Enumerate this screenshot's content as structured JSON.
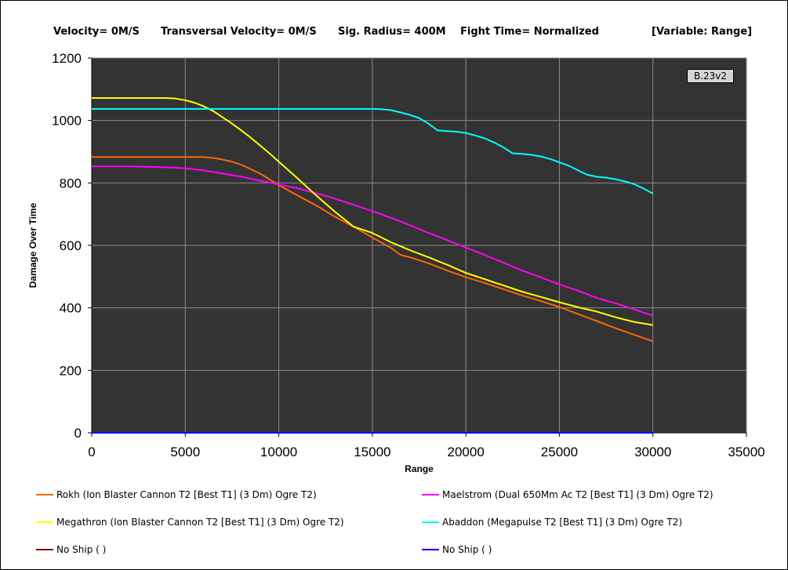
{
  "header": {
    "velocity": "Velocity= 0M/S",
    "transversal": "Transversal Velocity= 0M/S",
    "sig_radius": "Sig. Radius= 400M",
    "fight_time": "Fight Time= Normalized",
    "variable": "[Variable: Range]"
  },
  "version_badge": "B.23v2",
  "chart_data": {
    "type": "line",
    "xlabel": "Range",
    "ylabel": "Damage Over Time",
    "xlim": [
      0,
      35000
    ],
    "ylim": [
      0,
      1200
    ],
    "xticks": [
      0,
      5000,
      10000,
      15000,
      20000,
      25000,
      30000,
      35000
    ],
    "yticks": [
      0,
      200,
      400,
      600,
      800,
      1000,
      1200
    ],
    "grid": true,
    "legend_position": "bottom",
    "background_color": "#333333",
    "series": [
      {
        "name": "Rokh (Ion Blaster Cannon T2 [Best T1] (3 Dm) Ogre T2)",
        "color": "#ff6600",
        "x": [
          0,
          2000,
          4000,
          6000,
          6500,
          7000,
          7500,
          8000,
          9000,
          10000,
          11000,
          12000,
          13000,
          14000,
          15000,
          16000,
          16500,
          17000,
          18000,
          19000,
          20000,
          21000,
          22000,
          23000,
          24000,
          25000,
          26000,
          27000,
          28000,
          29000,
          30000
        ],
        "y": [
          883,
          883,
          883,
          883,
          880,
          875,
          868,
          858,
          830,
          793,
          760,
          728,
          692,
          660,
          625,
          592,
          570,
          562,
          543,
          520,
          498,
          480,
          460,
          440,
          422,
          403,
          380,
          358,
          335,
          314,
          293
        ]
      },
      {
        "name": "Maelstrom (Dual 650Mm Ac T2 [Best T1] (3 Dm) Ogre T2)",
        "color": "#ff00ff",
        "x": [
          0,
          2000,
          4000,
          5000,
          6000,
          7000,
          8000,
          9000,
          10000,
          11000,
          12000,
          13000,
          14000,
          15000,
          16000,
          17000,
          18000,
          19000,
          20000,
          21000,
          22000,
          23000,
          24000,
          25000,
          26000,
          27000,
          28000,
          29000,
          30000
        ],
        "y": [
          853,
          853,
          850,
          847,
          840,
          830,
          820,
          807,
          795,
          783,
          767,
          750,
          730,
          710,
          688,
          665,
          640,
          617,
          593,
          570,
          545,
          520,
          498,
          475,
          455,
          432,
          415,
          395,
          375
        ]
      },
      {
        "name": "Megathron (Ion Blaster Cannon T2 [Best T1] (3 Dm) Ogre T2)",
        "color": "#ffff00",
        "x": [
          0,
          2000,
          4000,
          4500,
          5000,
          5500,
          6000,
          6500,
          7000,
          7500,
          8000,
          8500,
          9000,
          9500,
          10000,
          11000,
          12000,
          13000,
          14000,
          15000,
          16000,
          17000,
          18000,
          19000,
          20000,
          21000,
          22000,
          23000,
          24000,
          25000,
          26000,
          27000,
          28000,
          29000,
          30000
        ],
        "y": [
          1072,
          1072,
          1072,
          1070,
          1065,
          1057,
          1045,
          1030,
          1010,
          990,
          968,
          945,
          920,
          895,
          868,
          815,
          760,
          708,
          660,
          640,
          610,
          585,
          562,
          538,
          512,
          492,
          472,
          452,
          435,
          418,
          402,
          388,
          370,
          355,
          345
        ]
      },
      {
        "name": "Abaddon (Megapulse T2 [Best T1] (3 Dm) Ogre T2)",
        "color": "#00ffff",
        "x": [
          0,
          5000,
          10000,
          15000,
          15500,
          16000,
          16500,
          17000,
          17500,
          18000,
          18500,
          19000,
          19500,
          20000,
          20500,
          21000,
          21500,
          22000,
          22500,
          23000,
          23500,
          24000,
          24500,
          25000,
          25500,
          26000,
          26500,
          27000,
          27500,
          28000,
          28500,
          29000,
          29500,
          30000
        ],
        "y": [
          1037,
          1037,
          1037,
          1037,
          1036,
          1033,
          1026,
          1018,
          1008,
          990,
          968,
          966,
          964,
          960,
          952,
          943,
          930,
          914,
          895,
          893,
          890,
          885,
          877,
          866,
          855,
          840,
          826,
          820,
          817,
          812,
          805,
          796,
          782,
          766
        ]
      },
      {
        "name": "No Ship ( )",
        "color": "#800000",
        "x": [
          0,
          30000
        ],
        "y": [
          0,
          0
        ]
      },
      {
        "name": "No Ship ( )",
        "color": "#0000ff",
        "x": [
          0,
          30000
        ],
        "y": [
          0,
          0
        ]
      }
    ]
  }
}
